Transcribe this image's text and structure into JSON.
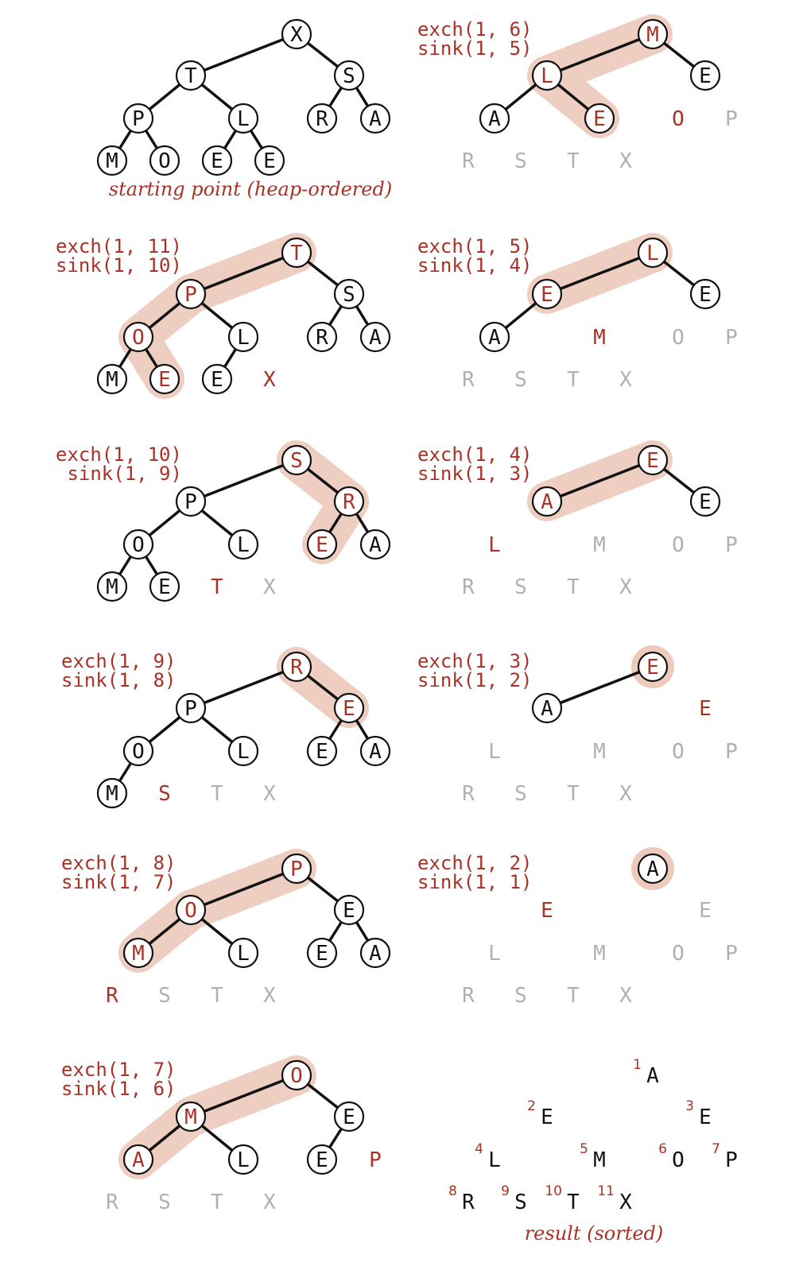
{
  "colors": {
    "black": "#111111",
    "red": "#a83226",
    "gray": "#b0b0b0",
    "highlight": "#eccbbd"
  },
  "panels": [
    {
      "id": "start",
      "captions": [],
      "note": "starting point (heap-ordered)",
      "nodes": [
        {
          "k": "X",
          "p": "1",
          "s": "heap"
        },
        {
          "k": "T",
          "p": "2",
          "s": "heap"
        },
        {
          "k": "S",
          "p": "3",
          "s": "heap"
        },
        {
          "k": "P",
          "p": "4",
          "s": "heap"
        },
        {
          "k": "L",
          "p": "5",
          "s": "heap"
        },
        {
          "k": "R",
          "p": "6",
          "s": "heap"
        },
        {
          "k": "A",
          "p": "7",
          "s": "heap"
        },
        {
          "k": "M",
          "p": "8",
          "s": "heap"
        },
        {
          "k": "O",
          "p": "9",
          "s": "heap"
        },
        {
          "k": "E",
          "p": "10",
          "s": "heap"
        },
        {
          "k": "E",
          "p": "11",
          "s": "heap"
        }
      ],
      "edges": [
        [
          "1",
          "2"
        ],
        [
          "1",
          "3"
        ],
        [
          "2",
          "4"
        ],
        [
          "2",
          "5"
        ],
        [
          "3",
          "6"
        ],
        [
          "3",
          "7"
        ],
        [
          "4",
          "8"
        ],
        [
          "4",
          "9"
        ],
        [
          "5",
          "10"
        ],
        [
          "5",
          "11"
        ]
      ],
      "highlight": []
    },
    {
      "id": "step1",
      "captions": [
        "exch(1, 11)",
        "sink(1, 10)"
      ],
      "nodes": [
        {
          "k": "T",
          "p": "1",
          "s": "heapred"
        },
        {
          "k": "P",
          "p": "2",
          "s": "heapred"
        },
        {
          "k": "S",
          "p": "3",
          "s": "heap"
        },
        {
          "k": "O",
          "p": "4",
          "s": "heapred"
        },
        {
          "k": "L",
          "p": "5",
          "s": "heap"
        },
        {
          "k": "R",
          "p": "6",
          "s": "heap"
        },
        {
          "k": "A",
          "p": "7",
          "s": "heap"
        },
        {
          "k": "M",
          "p": "8",
          "s": "heap"
        },
        {
          "k": "E",
          "p": "9",
          "s": "heapred"
        },
        {
          "k": "E",
          "p": "10",
          "s": "heap"
        },
        {
          "k": "X",
          "p": "11",
          "s": "new"
        }
      ],
      "edges": [
        [
          "1",
          "2"
        ],
        [
          "1",
          "3"
        ],
        [
          "2",
          "4"
        ],
        [
          "2",
          "5"
        ],
        [
          "3",
          "6"
        ],
        [
          "3",
          "7"
        ],
        [
          "4",
          "8"
        ],
        [
          "4",
          "9"
        ],
        [
          "5",
          "10"
        ]
      ],
      "highlight": [
        "1",
        "2",
        "4",
        "9"
      ]
    },
    {
      "id": "step2",
      "captions": [
        "exch(1, 10)",
        " sink(1, 9)"
      ],
      "nodes": [
        {
          "k": "S",
          "p": "1",
          "s": "heapred"
        },
        {
          "k": "P",
          "p": "2",
          "s": "heap"
        },
        {
          "k": "R",
          "p": "3",
          "s": "heapred"
        },
        {
          "k": "O",
          "p": "4",
          "s": "heap"
        },
        {
          "k": "L",
          "p": "5",
          "s": "heap"
        },
        {
          "k": "E",
          "p": "6",
          "s": "heapred"
        },
        {
          "k": "A",
          "p": "7",
          "s": "heap"
        },
        {
          "k": "M",
          "p": "8",
          "s": "heap"
        },
        {
          "k": "E",
          "p": "9",
          "s": "heap"
        },
        {
          "k": "T",
          "p": "10",
          "s": "new"
        },
        {
          "k": "X",
          "p": "11",
          "s": "sorted"
        }
      ],
      "edges": [
        [
          "1",
          "2"
        ],
        [
          "1",
          "3"
        ],
        [
          "2",
          "4"
        ],
        [
          "2",
          "5"
        ],
        [
          "3",
          "6"
        ],
        [
          "3",
          "7"
        ],
        [
          "4",
          "8"
        ],
        [
          "4",
          "9"
        ]
      ],
      "highlight": [
        "1",
        "3",
        "6"
      ]
    },
    {
      "id": "step3",
      "captions": [
        "exch(1, 9)",
        "sink(1, 8)"
      ],
      "nodes": [
        {
          "k": "R",
          "p": "1",
          "s": "heapred"
        },
        {
          "k": "P",
          "p": "2",
          "s": "heap"
        },
        {
          "k": "E",
          "p": "3",
          "s": "heapred"
        },
        {
          "k": "O",
          "p": "4",
          "s": "heap"
        },
        {
          "k": "L",
          "p": "5",
          "s": "heap"
        },
        {
          "k": "E",
          "p": "6",
          "s": "heap"
        },
        {
          "k": "A",
          "p": "7",
          "s": "heap"
        },
        {
          "k": "M",
          "p": "8",
          "s": "heap"
        },
        {
          "k": "S",
          "p": "9",
          "s": "new"
        },
        {
          "k": "T",
          "p": "10",
          "s": "sorted"
        },
        {
          "k": "X",
          "p": "11",
          "s": "sorted"
        }
      ],
      "edges": [
        [
          "1",
          "2"
        ],
        [
          "1",
          "3"
        ],
        [
          "2",
          "4"
        ],
        [
          "2",
          "5"
        ],
        [
          "3",
          "6"
        ],
        [
          "3",
          "7"
        ],
        [
          "4",
          "8"
        ]
      ],
      "highlight": [
        "1",
        "3"
      ]
    },
    {
      "id": "step4",
      "captions": [
        "exch(1, 8)",
        "sink(1, 7)"
      ],
      "nodes": [
        {
          "k": "P",
          "p": "1",
          "s": "heapred"
        },
        {
          "k": "O",
          "p": "2",
          "s": "heapred"
        },
        {
          "k": "E",
          "p": "3",
          "s": "heap"
        },
        {
          "k": "M",
          "p": "4",
          "s": "heapred"
        },
        {
          "k": "L",
          "p": "5",
          "s": "heap"
        },
        {
          "k": "E",
          "p": "6",
          "s": "heap"
        },
        {
          "k": "A",
          "p": "7",
          "s": "heap"
        },
        {
          "k": "R",
          "p": "8",
          "s": "new"
        },
        {
          "k": "S",
          "p": "9",
          "s": "sorted"
        },
        {
          "k": "T",
          "p": "10",
          "s": "sorted"
        },
        {
          "k": "X",
          "p": "11",
          "s": "sorted"
        }
      ],
      "edges": [
        [
          "1",
          "2"
        ],
        [
          "1",
          "3"
        ],
        [
          "2",
          "4"
        ],
        [
          "2",
          "5"
        ],
        [
          "3",
          "6"
        ],
        [
          "3",
          "7"
        ]
      ],
      "highlight": [
        "1",
        "2",
        "4"
      ]
    },
    {
      "id": "step5",
      "captions": [
        "exch(1, 7)",
        "sink(1, 6)"
      ],
      "nodes": [
        {
          "k": "O",
          "p": "1",
          "s": "heapred"
        },
        {
          "k": "M",
          "p": "2",
          "s": "heapred"
        },
        {
          "k": "E",
          "p": "3",
          "s": "heap"
        },
        {
          "k": "A",
          "p": "4",
          "s": "heapred"
        },
        {
          "k": "L",
          "p": "5",
          "s": "heap"
        },
        {
          "k": "E",
          "p": "6",
          "s": "heap"
        },
        {
          "k": "P",
          "p": "7",
          "s": "new"
        },
        {
          "k": "R",
          "p": "8",
          "s": "sorted"
        },
        {
          "k": "S",
          "p": "9",
          "s": "sorted"
        },
        {
          "k": "T",
          "p": "10",
          "s": "sorted"
        },
        {
          "k": "X",
          "p": "11",
          "s": "sorted"
        }
      ],
      "edges": [
        [
          "1",
          "2"
        ],
        [
          "1",
          "3"
        ],
        [
          "2",
          "4"
        ],
        [
          "2",
          "5"
        ],
        [
          "3",
          "6"
        ]
      ],
      "highlight": [
        "1",
        "2",
        "4"
      ]
    },
    {
      "id": "step6",
      "captions": [
        "exch(1, 6)",
        "sink(1, 5)"
      ],
      "nodes": [
        {
          "k": "M",
          "p": "1",
          "s": "heapred"
        },
        {
          "k": "L",
          "p": "2",
          "s": "heapred"
        },
        {
          "k": "E",
          "p": "3",
          "s": "heap"
        },
        {
          "k": "A",
          "p": "4",
          "s": "heap"
        },
        {
          "k": "E",
          "p": "5",
          "s": "heapred"
        },
        {
          "k": "O",
          "p": "6",
          "s": "new"
        },
        {
          "k": "P",
          "p": "7",
          "s": "sorted"
        },
        {
          "k": "R",
          "p": "8",
          "s": "sorted"
        },
        {
          "k": "S",
          "p": "9",
          "s": "sorted"
        },
        {
          "k": "T",
          "p": "10",
          "s": "sorted"
        },
        {
          "k": "X",
          "p": "11",
          "s": "sorted"
        }
      ],
      "edges": [
        [
          "1",
          "2"
        ],
        [
          "1",
          "3"
        ],
        [
          "2",
          "4"
        ],
        [
          "2",
          "5"
        ]
      ],
      "highlight": [
        "1",
        "2",
        "5"
      ]
    },
    {
      "id": "step7",
      "captions": [
        "exch(1, 5)",
        "sink(1, 4)"
      ],
      "nodes": [
        {
          "k": "L",
          "p": "1",
          "s": "heapred"
        },
        {
          "k": "E",
          "p": "2",
          "s": "heapred"
        },
        {
          "k": "E",
          "p": "3",
          "s": "heap"
        },
        {
          "k": "A",
          "p": "4",
          "s": "heap"
        },
        {
          "k": "M",
          "p": "5",
          "s": "new"
        },
        {
          "k": "O",
          "p": "6",
          "s": "sorted"
        },
        {
          "k": "P",
          "p": "7",
          "s": "sorted"
        },
        {
          "k": "R",
          "p": "8",
          "s": "sorted"
        },
        {
          "k": "S",
          "p": "9",
          "s": "sorted"
        },
        {
          "k": "T",
          "p": "10",
          "s": "sorted"
        },
        {
          "k": "X",
          "p": "11",
          "s": "sorted"
        }
      ],
      "edges": [
        [
          "1",
          "2"
        ],
        [
          "1",
          "3"
        ],
        [
          "2",
          "4"
        ]
      ],
      "highlight": [
        "1",
        "2"
      ]
    },
    {
      "id": "step8",
      "captions": [
        "exch(1, 4)",
        "sink(1, 3)"
      ],
      "nodes": [
        {
          "k": "E",
          "p": "1",
          "s": "heapred"
        },
        {
          "k": "A",
          "p": "2",
          "s": "heapred"
        },
        {
          "k": "E",
          "p": "3",
          "s": "heap"
        },
        {
          "k": "L",
          "p": "4",
          "s": "new"
        },
        {
          "k": "M",
          "p": "5",
          "s": "sorted"
        },
        {
          "k": "O",
          "p": "6",
          "s": "sorted"
        },
        {
          "k": "P",
          "p": "7",
          "s": "sorted"
        },
        {
          "k": "R",
          "p": "8",
          "s": "sorted"
        },
        {
          "k": "S",
          "p": "9",
          "s": "sorted"
        },
        {
          "k": "T",
          "p": "10",
          "s": "sorted"
        },
        {
          "k": "X",
          "p": "11",
          "s": "sorted"
        }
      ],
      "edges": [
        [
          "1",
          "2"
        ],
        [
          "1",
          "3"
        ]
      ],
      "highlight": [
        "1",
        "2"
      ]
    },
    {
      "id": "step9",
      "captions": [
        "exch(1, 3)",
        "sink(1, 2)"
      ],
      "nodes": [
        {
          "k": "E",
          "p": "1",
          "s": "heapred"
        },
        {
          "k": "A",
          "p": "2",
          "s": "heap"
        },
        {
          "k": "E",
          "p": "3",
          "s": "new"
        },
        {
          "k": "L",
          "p": "4",
          "s": "sorted"
        },
        {
          "k": "M",
          "p": "5",
          "s": "sorted"
        },
        {
          "k": "O",
          "p": "6",
          "s": "sorted"
        },
        {
          "k": "P",
          "p": "7",
          "s": "sorted"
        },
        {
          "k": "R",
          "p": "8",
          "s": "sorted"
        },
        {
          "k": "S",
          "p": "9",
          "s": "sorted"
        },
        {
          "k": "T",
          "p": "10",
          "s": "sorted"
        },
        {
          "k": "X",
          "p": "11",
          "s": "sorted"
        }
      ],
      "edges": [
        [
          "1",
          "2"
        ]
      ],
      "highlight": [
        "1"
      ]
    },
    {
      "id": "step10",
      "captions": [
        "exch(1, 2)",
        "sink(1, 1)"
      ],
      "nodes": [
        {
          "k": "A",
          "p": "1",
          "s": "heap"
        },
        {
          "k": "E",
          "p": "2",
          "s": "new"
        },
        {
          "k": "E",
          "p": "3",
          "s": "sorted"
        },
        {
          "k": "L",
          "p": "4",
          "s": "sorted"
        },
        {
          "k": "M",
          "p": "5",
          "s": "sorted"
        },
        {
          "k": "O",
          "p": "6",
          "s": "sorted"
        },
        {
          "k": "P",
          "p": "7",
          "s": "sorted"
        },
        {
          "k": "R",
          "p": "8",
          "s": "sorted"
        },
        {
          "k": "S",
          "p": "9",
          "s": "sorted"
        },
        {
          "k": "T",
          "p": "10",
          "s": "sorted"
        },
        {
          "k": "X",
          "p": "11",
          "s": "sorted"
        }
      ],
      "edges": [],
      "highlight": [
        "1"
      ]
    },
    {
      "id": "result",
      "captions": [],
      "note": "result (sorted)",
      "nodes": [
        {
          "k": "A",
          "p": "1",
          "s": "final",
          "n": "1"
        },
        {
          "k": "E",
          "p": "2",
          "s": "final",
          "n": "2"
        },
        {
          "k": "E",
          "p": "3",
          "s": "final",
          "n": "3"
        },
        {
          "k": "L",
          "p": "4",
          "s": "final",
          "n": "4"
        },
        {
          "k": "M",
          "p": "5",
          "s": "final",
          "n": "5"
        },
        {
          "k": "O",
          "p": "6",
          "s": "final",
          "n": "6"
        },
        {
          "k": "P",
          "p": "7",
          "s": "final",
          "n": "7"
        },
        {
          "k": "R",
          "p": "8",
          "s": "final",
          "n": "8"
        },
        {
          "k": "S",
          "p": "9",
          "s": "final",
          "n": "9"
        },
        {
          "k": "T",
          "p": "10",
          "s": "final",
          "n": "10"
        },
        {
          "k": "X",
          "p": "11",
          "s": "final",
          "n": "11"
        }
      ],
      "edges": [],
      "highlight": []
    }
  ]
}
